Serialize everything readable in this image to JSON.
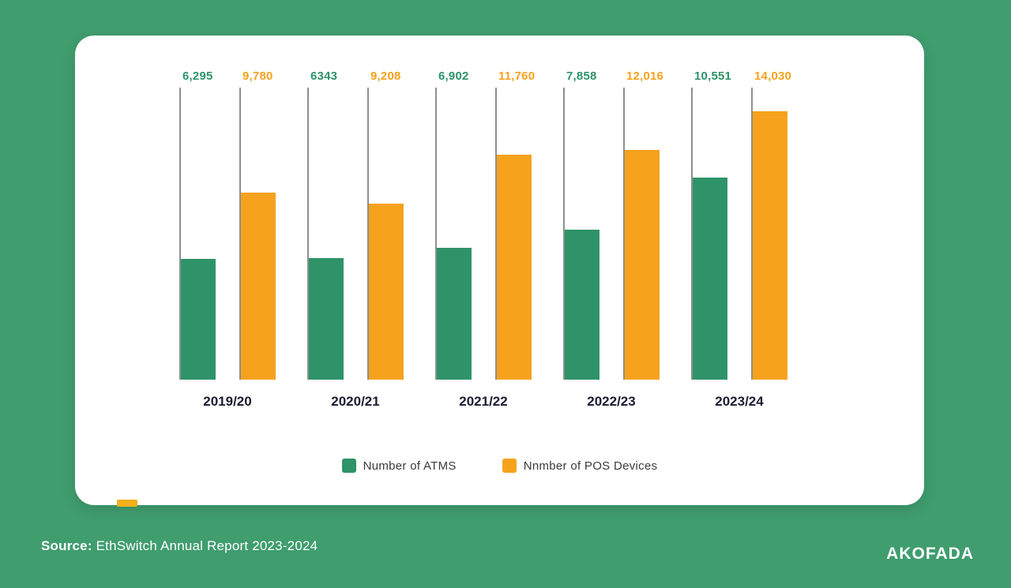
{
  "page": {
    "background_color": "#3f9d6e",
    "card_color": "#ffffff",
    "accent_color": "#f2b01e"
  },
  "chart_data": {
    "type": "bar",
    "categories": [
      "2019/20",
      "2020/21",
      "2021/22",
      "2022/23",
      "2023/24"
    ],
    "series": [
      {
        "name": "Number of ATMS",
        "color": "#2e9368",
        "values": [
          6295,
          6343,
          6902,
          7858,
          10551
        ],
        "labels": [
          "6,295",
          "6343",
          "6,902",
          "7,858",
          "10,551"
        ]
      },
      {
        "name": "Nnmber of POS Devices",
        "color": "#f6a21d",
        "values": [
          9780,
          9208,
          11760,
          12016,
          14030
        ],
        "labels": [
          "9,780",
          "9,208",
          "11,760",
          "12,016",
          "14,030"
        ]
      }
    ],
    "title": "",
    "xlabel": "",
    "ylabel": "",
    "ylim": [
      0,
      14030
    ],
    "grid": false,
    "legend_position": "bottom"
  },
  "footer": {
    "source_label": "Source:",
    "source_text": " EthSwitch Annual Report 2023-2024",
    "brand": "AKOFADA"
  }
}
